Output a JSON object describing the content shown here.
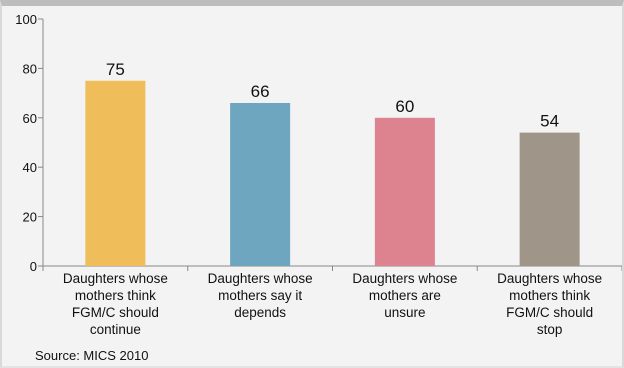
{
  "chart_data": {
    "type": "bar",
    "title": "",
    "xlabel": "",
    "ylabel": "",
    "ylim": [
      0,
      100
    ],
    "yticks": [
      0,
      20,
      40,
      60,
      80,
      100
    ],
    "grid": false,
    "categories": [
      [
        "Daughters whose",
        "mothers think",
        "FGM/C should",
        "continue"
      ],
      [
        "Daughters whose",
        "mothers say it",
        "depends"
      ],
      [
        "Daughters whose",
        "mothers are",
        "unsure"
      ],
      [
        "Daughters whose",
        "mothers think",
        "FGM/C should",
        "stop"
      ]
    ],
    "values": [
      75,
      66,
      60,
      54
    ],
    "data_labels": [
      "75",
      "66",
      "60",
      "54"
    ],
    "colors": [
      "#efbd5a",
      "#6ea5bf",
      "#dd8390",
      "#9f9589"
    ]
  },
  "source": "Source: MICS 2010"
}
